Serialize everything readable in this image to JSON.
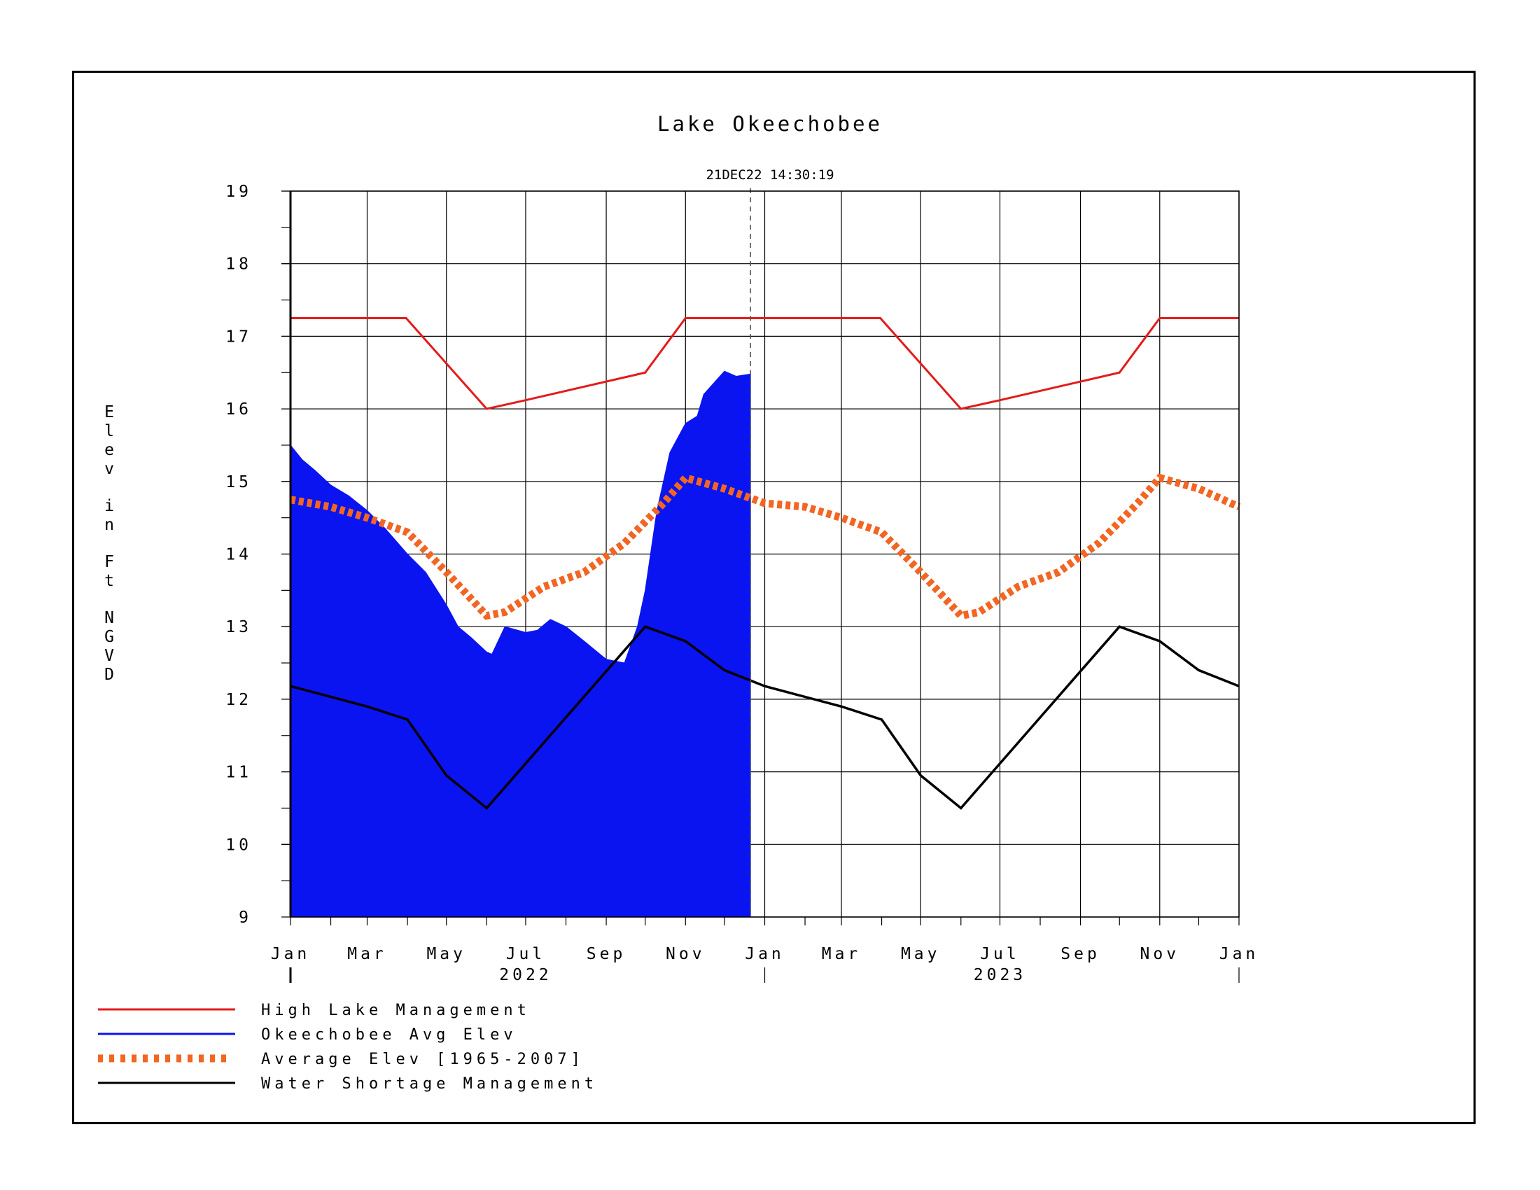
{
  "chart_data": {
    "type": "area",
    "title": "Lake Okeechobee",
    "timestamp": "21DEC22  14:30:19",
    "ylabel": "Elev in Ft NGVD",
    "xlabel": "",
    "ylim": [
      9,
      19
    ],
    "yticks": [
      "9",
      "10",
      "11",
      "12",
      "13",
      "14",
      "15",
      "16",
      "17",
      "18",
      "19"
    ],
    "xlim": [
      "2022-01-01",
      "2024-01-01"
    ],
    "xtick_dates": [
      "2022-01-01",
      "2022-03-01",
      "2022-05-01",
      "2022-07-01",
      "2022-09-01",
      "2022-11-01",
      "2023-01-01",
      "2023-03-01",
      "2023-05-01",
      "2023-07-01",
      "2023-09-01",
      "2023-11-01",
      "2024-01-01"
    ],
    "xtick_labels": [
      "Jan",
      "Mar",
      "May",
      "Jul",
      "Sep",
      "Nov",
      "Jan",
      "Mar",
      "May",
      "Jul",
      "Sep",
      "Nov",
      "Jan"
    ],
    "year_labels": [
      {
        "label": "2022",
        "date": "2022-07-01"
      },
      {
        "label": "2023",
        "date": "2023-07-01"
      }
    ],
    "current_date_marker": "2022-12-21",
    "grid": true,
    "legend_position": "bottom-left",
    "series": [
      {
        "name": "High Lake Management",
        "color": "#e31b1b",
        "style": "solid",
        "points": [
          [
            "2022-01-01",
            17.25
          ],
          [
            "2022-03-31",
            17.25
          ],
          [
            "2022-06-01",
            16.0
          ],
          [
            "2022-07-01",
            16.12
          ],
          [
            "2022-10-01",
            16.5
          ],
          [
            "2022-11-01",
            17.25
          ],
          [
            "2023-03-31",
            17.25
          ],
          [
            "2023-06-01",
            16.0
          ],
          [
            "2023-07-01",
            16.12
          ],
          [
            "2023-10-01",
            16.5
          ],
          [
            "2023-11-01",
            17.25
          ],
          [
            "2024-01-01",
            17.25
          ]
        ]
      },
      {
        "name": "Okeechobee Avg Elev",
        "color": "#0a14f0",
        "style": "filled-area",
        "points": [
          [
            "2022-01-01",
            15.5
          ],
          [
            "2022-01-10",
            15.3
          ],
          [
            "2022-01-20",
            15.15
          ],
          [
            "2022-02-01",
            14.95
          ],
          [
            "2022-02-15",
            14.8
          ],
          [
            "2022-03-01",
            14.6
          ],
          [
            "2022-03-15",
            14.35
          ],
          [
            "2022-04-01",
            14.0
          ],
          [
            "2022-04-15",
            13.75
          ],
          [
            "2022-05-01",
            13.3
          ],
          [
            "2022-05-10",
            13.0
          ],
          [
            "2022-05-20",
            12.85
          ],
          [
            "2022-06-01",
            12.65
          ],
          [
            "2022-06-05",
            12.62
          ],
          [
            "2022-06-15",
            13.0
          ],
          [
            "2022-07-01",
            12.92
          ],
          [
            "2022-07-10",
            12.95
          ],
          [
            "2022-07-20",
            13.1
          ],
          [
            "2022-08-01",
            13.0
          ],
          [
            "2022-08-15",
            12.8
          ],
          [
            "2022-09-01",
            12.55
          ],
          [
            "2022-09-15",
            12.5
          ],
          [
            "2022-09-25",
            13.0
          ],
          [
            "2022-10-01",
            13.5
          ],
          [
            "2022-10-10",
            14.6
          ],
          [
            "2022-10-20",
            15.4
          ],
          [
            "2022-11-01",
            15.8
          ],
          [
            "2022-11-10",
            15.9
          ],
          [
            "2022-11-15",
            16.2
          ],
          [
            "2022-11-25",
            16.4
          ],
          [
            "2022-12-01",
            16.52
          ],
          [
            "2022-12-10",
            16.45
          ],
          [
            "2022-12-21",
            16.48
          ]
        ]
      },
      {
        "name": "Average Elev [1965-2007]",
        "color": "#f26522",
        "style": "dotted",
        "points": [
          [
            "2022-01-01",
            14.75
          ],
          [
            "2022-02-01",
            14.65
          ],
          [
            "2022-03-01",
            14.5
          ],
          [
            "2022-04-01",
            14.3
          ],
          [
            "2022-05-01",
            13.75
          ],
          [
            "2022-06-01",
            13.15
          ],
          [
            "2022-06-15",
            13.2
          ],
          [
            "2022-07-15",
            13.55
          ],
          [
            "2022-08-15",
            13.75
          ],
          [
            "2022-09-15",
            14.15
          ],
          [
            "2022-10-15",
            14.7
          ],
          [
            "2022-11-01",
            15.05
          ],
          [
            "2022-12-01",
            14.9
          ],
          [
            "2023-01-01",
            14.7
          ],
          [
            "2023-02-01",
            14.65
          ],
          [
            "2023-03-01",
            14.5
          ],
          [
            "2023-04-01",
            14.3
          ],
          [
            "2023-05-01",
            13.75
          ],
          [
            "2023-06-01",
            13.15
          ],
          [
            "2023-06-15",
            13.2
          ],
          [
            "2023-07-15",
            13.55
          ],
          [
            "2023-08-15",
            13.75
          ],
          [
            "2023-09-15",
            14.15
          ],
          [
            "2023-10-15",
            14.7
          ],
          [
            "2023-11-01",
            15.05
          ],
          [
            "2023-12-01",
            14.9
          ],
          [
            "2024-01-01",
            14.65
          ]
        ]
      },
      {
        "name": "Water Shortage Management",
        "color": "#000000",
        "style": "solid",
        "points": [
          [
            "2022-01-01",
            12.18
          ],
          [
            "2022-03-01",
            11.9
          ],
          [
            "2022-04-01",
            11.72
          ],
          [
            "2022-05-01",
            10.95
          ],
          [
            "2022-06-01",
            10.5
          ],
          [
            "2022-10-01",
            13.0
          ],
          [
            "2022-11-01",
            12.8
          ],
          [
            "2022-12-01",
            12.4
          ],
          [
            "2023-01-01",
            12.18
          ],
          [
            "2023-03-01",
            11.9
          ],
          [
            "2023-04-01",
            11.72
          ],
          [
            "2023-05-01",
            10.95
          ],
          [
            "2023-06-01",
            10.5
          ],
          [
            "2023-10-01",
            13.0
          ],
          [
            "2023-11-01",
            12.8
          ],
          [
            "2023-12-01",
            12.4
          ],
          [
            "2024-01-01",
            12.18
          ]
        ]
      }
    ]
  }
}
